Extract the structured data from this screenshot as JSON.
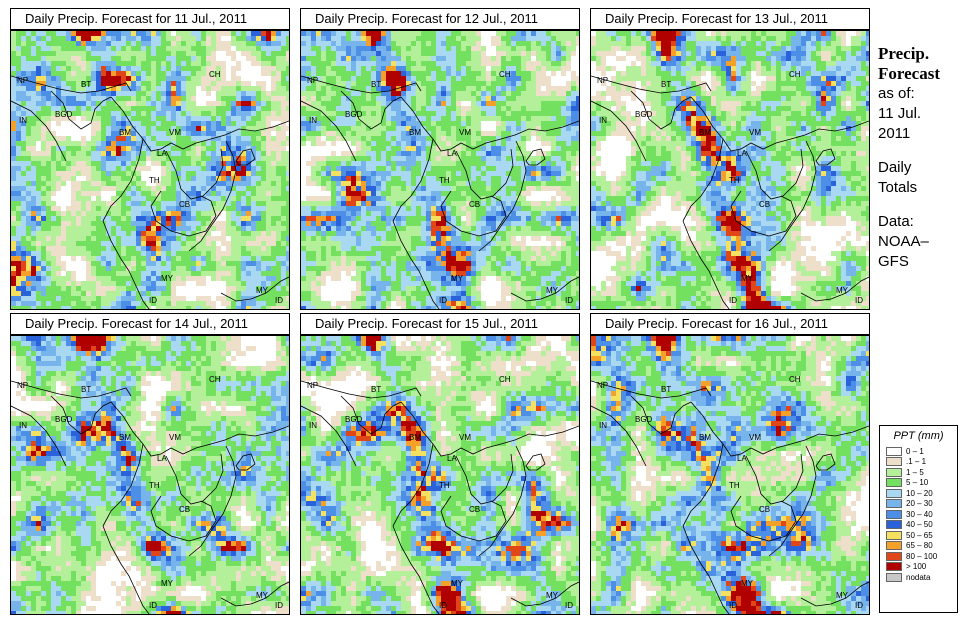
{
  "panels": [
    {
      "title": "Daily Precip. Forecast for  11 Jul., 2011",
      "seed": 11
    },
    {
      "title": "Daily Precip. Forecast for  12 Jul., 2011",
      "seed": 12
    },
    {
      "title": "Daily Precip. Forecast for  13 Jul., 2011",
      "seed": 13
    },
    {
      "title": "Daily Precip. Forecast for  14 Jul., 2011",
      "seed": 14
    },
    {
      "title": "Daily Precip. Forecast for  15 Jul., 2011",
      "seed": 15
    },
    {
      "title": "Daily Precip. Forecast for  16 Jul., 2011",
      "seed": 16
    }
  ],
  "country_labels": [
    "NP",
    "BT",
    "BGD",
    "IN",
    "CH",
    "BM",
    "VM",
    "LA",
    "TH",
    "CB",
    "MY",
    "ID",
    "MY",
    "ID"
  ],
  "side": {
    "heading_1": "Precip.",
    "heading_2": "Forecast",
    "asof_1": "as of:",
    "asof_2": "11 Jul.",
    "asof_3": "2011",
    "totals_1": "Daily",
    "totals_2": "Totals",
    "data_1": "Data:",
    "data_2": "NOAA–",
    "data_3": "GFS"
  },
  "legend": {
    "title": "PPT (mm)",
    "items": [
      {
        "label": "0 – 1",
        "color": "#ffffff"
      },
      {
        "label": ".1 – 1",
        "color": "#eedfca"
      },
      {
        "label": "1 – 5",
        "color": "#b4f09a"
      },
      {
        "label": "5 – 10",
        "color": "#74e060"
      },
      {
        "label": "10 – 20",
        "color": "#a9d8f3"
      },
      {
        "label": "20 – 30",
        "color": "#78b4ec"
      },
      {
        "label": "30 – 40",
        "color": "#4d8fe6"
      },
      {
        "label": "40 – 50",
        "color": "#2a62dc"
      },
      {
        "label": "50 – 65",
        "color": "#f5e160"
      },
      {
        "label": "65 – 80",
        "color": "#f5a028"
      },
      {
        "label": "80 – 100",
        "color": "#e04618"
      },
      {
        "label": "> 100",
        "color": "#b00000"
      },
      {
        "label": "nodata",
        "color": "#c8c8c8"
      }
    ]
  }
}
